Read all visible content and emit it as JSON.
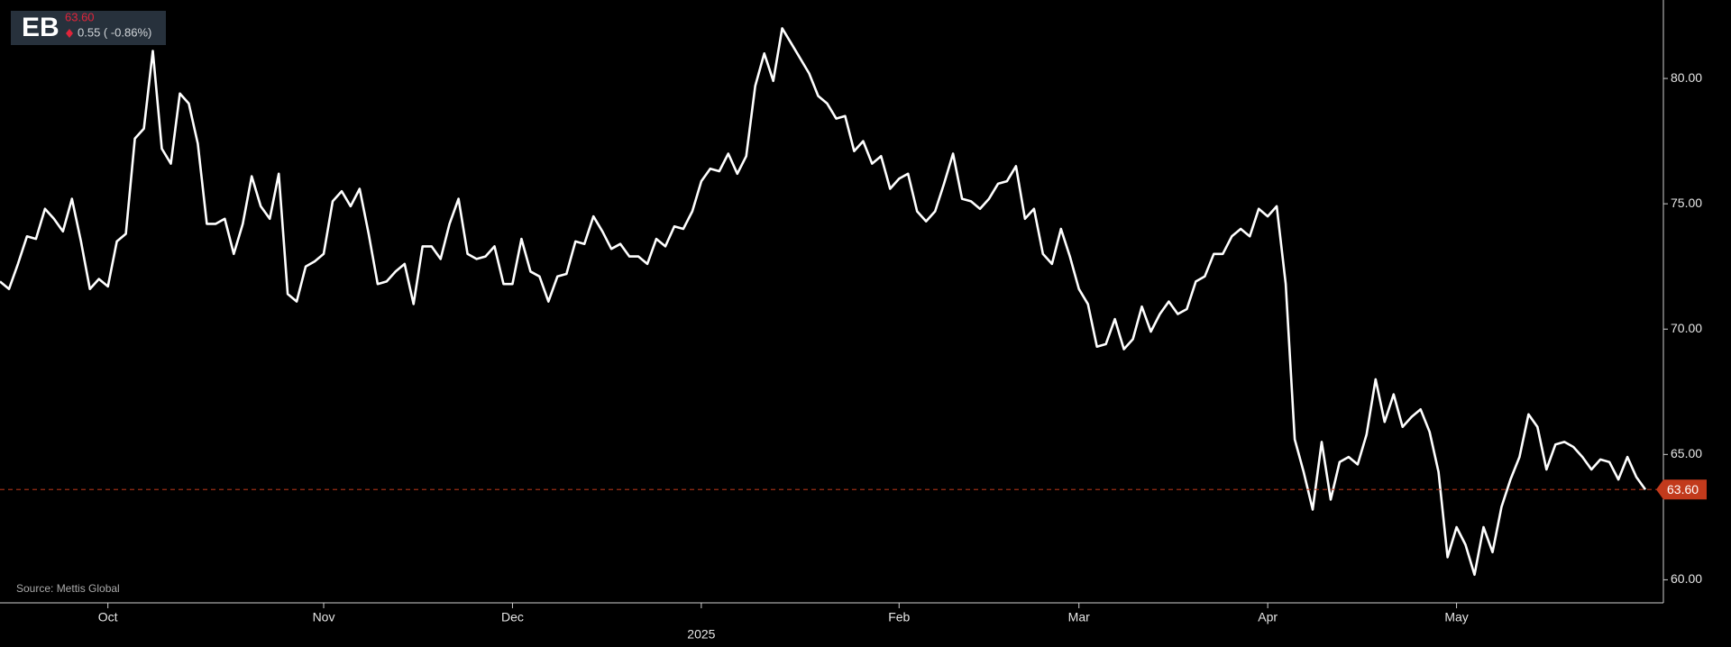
{
  "header": {
    "ticker": "EB",
    "price": "63.60",
    "change": "0.55 ( -0.86%)"
  },
  "chart_data": {
    "type": "line",
    "source": "Source: Mettis Global",
    "categories": [
      null,
      null,
      null,
      null,
      null,
      null,
      null,
      null,
      null,
      null,
      null,
      null,
      "Oct",
      null,
      null,
      null,
      null,
      null,
      null,
      null,
      null,
      null,
      null,
      null,
      null,
      null,
      null,
      null,
      null,
      null,
      null,
      null,
      null,
      null,
      null,
      null,
      "Nov",
      null,
      null,
      null,
      null,
      null,
      null,
      null,
      null,
      null,
      null,
      null,
      null,
      null,
      null,
      null,
      null,
      null,
      null,
      null,
      null,
      "Dec",
      null,
      null,
      null,
      null,
      null,
      null,
      null,
      null,
      null,
      null,
      null,
      null,
      null,
      null,
      null,
      null,
      null,
      null,
      null,
      null,
      "2025",
      null,
      null,
      null,
      null,
      null,
      null,
      null,
      null,
      null,
      null,
      null,
      null,
      null,
      null,
      null,
      null,
      null,
      null,
      null,
      null,
      null,
      "Feb",
      null,
      null,
      null,
      null,
      null,
      null,
      null,
      null,
      null,
      null,
      null,
      null,
      null,
      null,
      null,
      null,
      null,
      null,
      null,
      "Mar",
      null,
      null,
      null,
      null,
      null,
      null,
      null,
      null,
      null,
      null,
      null,
      null,
      null,
      null,
      null,
      null,
      null,
      null,
      null,
      null,
      "Apr",
      null,
      null,
      null,
      null,
      null,
      null,
      null,
      null,
      null,
      null,
      null,
      null,
      null,
      null,
      null,
      null,
      null,
      null,
      null,
      null,
      "May",
      null,
      null,
      null,
      null,
      null,
      null,
      null,
      null,
      null,
      null,
      null,
      null,
      null,
      null,
      null,
      null,
      null,
      null,
      null,
      null,
      null
    ],
    "series": [
      {
        "color": "#ffffff",
        "values": [
          71.9,
          71.6,
          72.6,
          73.7,
          73.6,
          74.8,
          74.4,
          73.9,
          75.2,
          73.5,
          71.6,
          72.0,
          71.7,
          73.5,
          73.8,
          77.6,
          78.0,
          81.1,
          77.2,
          76.6,
          79.4,
          79.0,
          77.4,
          74.2,
          74.2,
          74.4,
          73.0,
          74.2,
          76.1,
          74.9,
          74.4,
          76.2,
          71.4,
          71.1,
          72.5,
          72.7,
          73.0,
          75.1,
          75.5,
          74.9,
          75.6,
          73.8,
          71.8,
          71.9,
          72.3,
          72.6,
          71.0,
          73.3,
          73.3,
          72.8,
          74.2,
          75.2,
          73.0,
          72.8,
          72.9,
          73.3,
          71.8,
          71.8,
          73.6,
          72.3,
          72.1,
          71.1,
          72.1,
          72.2,
          73.5,
          73.4,
          74.5,
          73.9,
          73.2,
          73.4,
          72.9,
          72.9,
          72.6,
          73.6,
          73.3,
          74.1,
          74.0,
          74.7,
          75.9,
          76.4,
          76.3,
          77.0,
          76.2,
          76.9,
          79.7,
          81.0,
          79.9,
          82.0,
          81.4,
          80.8,
          80.2,
          79.3,
          79.0,
          78.4,
          78.5,
          77.1,
          77.5,
          76.6,
          76.9,
          75.6,
          76.0,
          76.2,
          74.7,
          74.3,
          74.7,
          75.8,
          77.0,
          75.2,
          75.1,
          74.8,
          75.2,
          75.8,
          75.9,
          76.5,
          74.4,
          74.8,
          73.0,
          72.6,
          74.0,
          72.9,
          71.6,
          71.0,
          69.3,
          69.4,
          70.4,
          69.2,
          69.6,
          70.9,
          69.9,
          70.6,
          71.1,
          70.6,
          70.8,
          71.9,
          72.1,
          73.0,
          73.0,
          73.7,
          74.0,
          73.7,
          74.8,
          74.5,
          74.9,
          71.8,
          65.6,
          64.3,
          62.8,
          65.5,
          63.2,
          64.7,
          64.9,
          64.6,
          65.8,
          68.0,
          66.3,
          67.4,
          66.1,
          66.5,
          66.8,
          65.9,
          64.3,
          60.9,
          62.1,
          61.4,
          60.2,
          62.1,
          61.1,
          62.9,
          64.0,
          64.9,
          66.6,
          66.1,
          64.4,
          65.4,
          65.5,
          65.3,
          64.9,
          64.4,
          64.8,
          64.7,
          64.0,
          64.9,
          64.1,
          63.6
        ]
      }
    ],
    "last_value_label": "63.60",
    "last_value_color": "#c23a1c",
    "ylim": [
      59.08,
      83.13
    ],
    "yticks": [
      {
        "value": 60,
        "label": "60.00"
      },
      {
        "value": 65,
        "label": "65.00"
      },
      {
        "value": 70,
        "label": "70.00"
      },
      {
        "value": 75,
        "label": "75.00"
      },
      {
        "value": 80,
        "label": "80.00"
      }
    ],
    "grid": false
  }
}
